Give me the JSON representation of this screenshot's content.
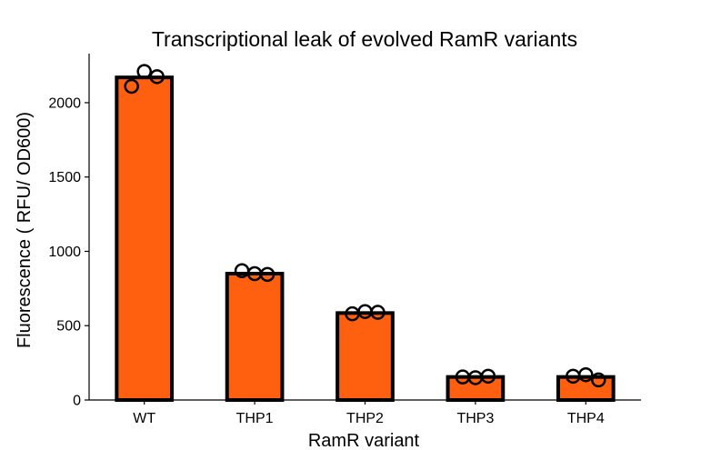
{
  "chart_data": {
    "type": "bar",
    "title": "Transcriptional leak of evolved RamR variants",
    "xlabel": "RamR variant",
    "ylabel": "Fluorescence ( RFU/ OD600)",
    "categories": [
      "WT",
      "THP1",
      "THP2",
      "THP3",
      "THP4"
    ],
    "values": [
      2170,
      850,
      585,
      155,
      155
    ],
    "replicates": [
      [
        2110,
        2210,
        2175
      ],
      [
        870,
        850,
        845
      ],
      [
        580,
        595,
        590
      ],
      [
        155,
        150,
        160
      ],
      [
        160,
        170,
        135
      ]
    ],
    "ylim": [
      0,
      2330
    ],
    "yticks": [
      0,
      500,
      1000,
      1500,
      2000
    ],
    "grid": false,
    "legend": "none",
    "bar_color": "#FF6010",
    "edge_color": "#000000"
  }
}
